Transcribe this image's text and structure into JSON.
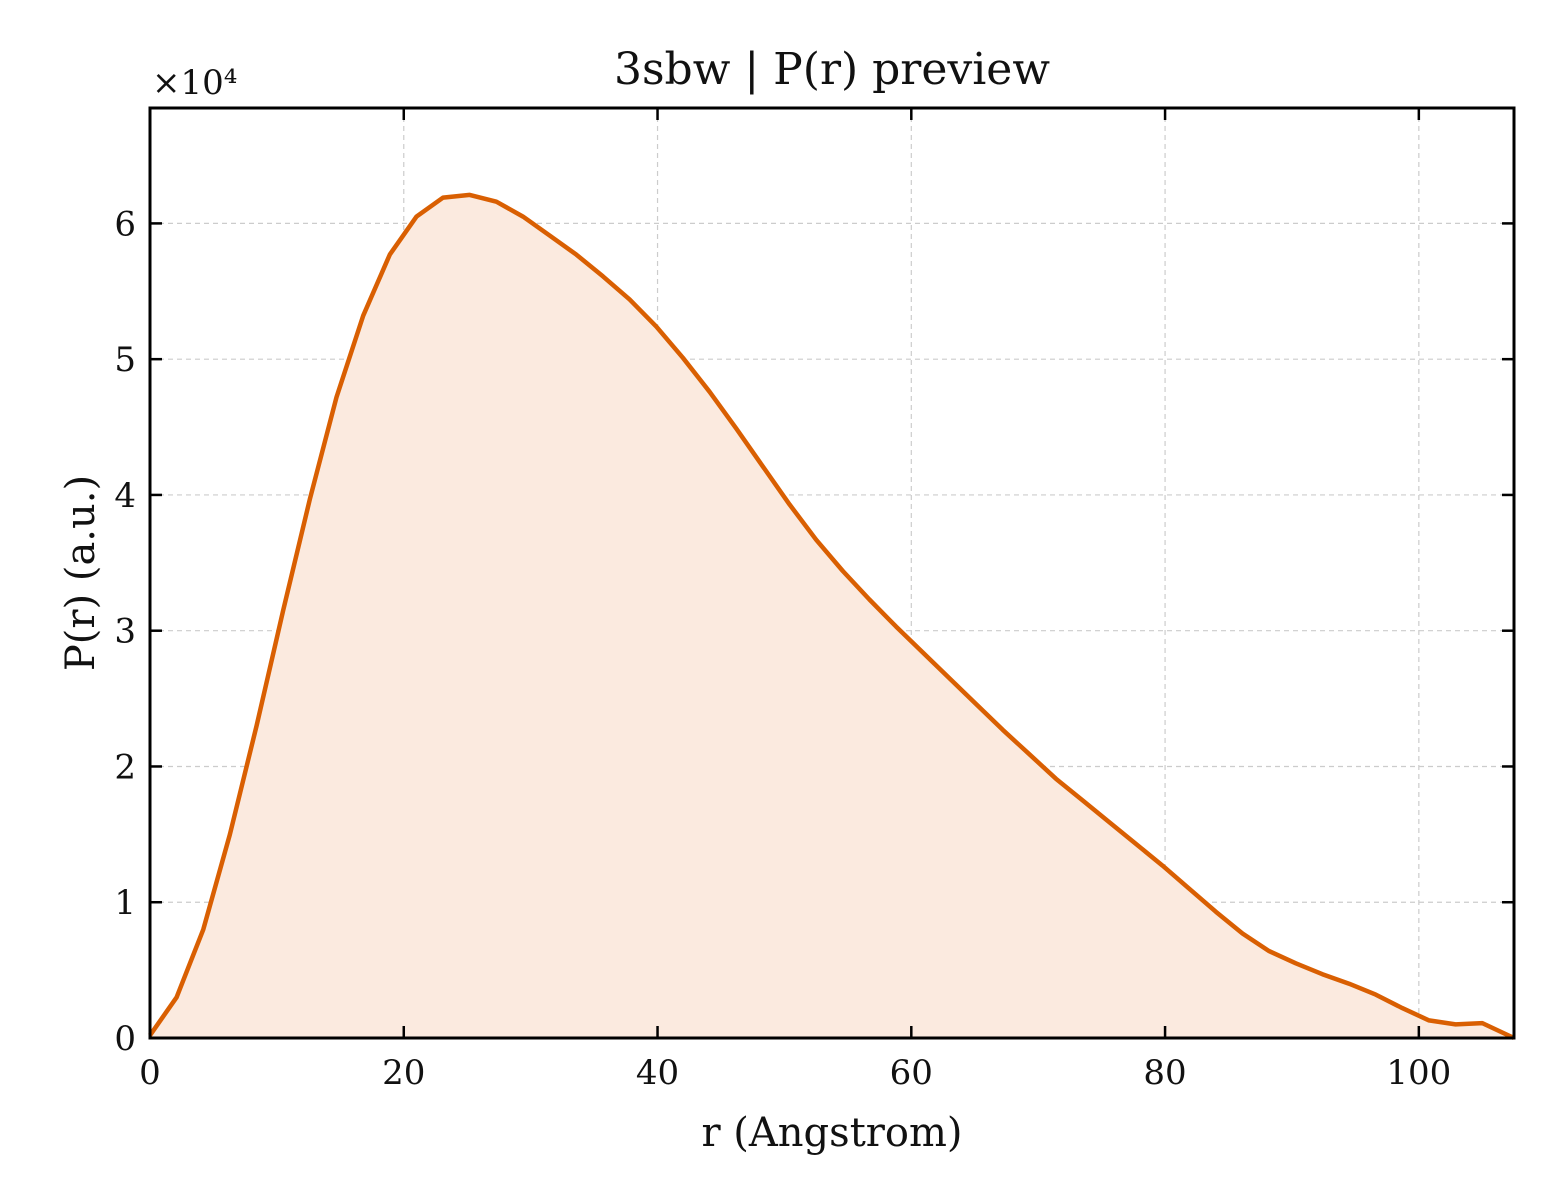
{
  "chart_data": {
    "type": "area",
    "title": "3sbw | P(r) preview",
    "xlabel": "r (Angstrom)",
    "ylabel": "P(r) (a.u.)",
    "y_multiplier_label": "×10⁴",
    "y_multiplier": 10000,
    "xlim": [
      0,
      107.5
    ],
    "ylim": [
      0,
      6.85
    ],
    "x_ticks": [
      0,
      20,
      40,
      60,
      80,
      100
    ],
    "y_ticks": [
      0,
      1,
      2,
      3,
      4,
      5,
      6
    ],
    "grid": true,
    "legend": false,
    "colors": {
      "line": "#d95f02",
      "fill": "#fbeadf",
      "grid": "#cccccc",
      "axis": "#000000"
    },
    "series": [
      {
        "x": [
          0,
          2.1,
          4.2,
          6.3,
          8.4,
          10.5,
          12.6,
          14.7,
          16.8,
          18.9,
          21.0,
          23.1,
          25.2,
          27.3,
          29.4,
          31.5,
          33.6,
          35.7,
          37.8,
          39.9,
          42.0,
          44.1,
          46.2,
          48.3,
          50.4,
          52.5,
          54.6,
          56.7,
          58.8,
          60.9,
          63.0,
          65.1,
          67.2,
          69.3,
          71.4,
          73.5,
          75.6,
          77.7,
          79.8,
          81.9,
          84.0,
          86.1,
          88.2,
          90.3,
          92.4,
          94.5,
          96.6,
          98.7,
          100.8,
          102.9,
          105.0,
          107.5
        ],
        "values": [
          0.02,
          0.3,
          0.8,
          1.5,
          2.3,
          3.15,
          3.97,
          4.72,
          5.32,
          5.77,
          6.05,
          6.19,
          6.21,
          6.16,
          6.05,
          5.91,
          5.77,
          5.61,
          5.44,
          5.24,
          5.01,
          4.76,
          4.49,
          4.21,
          3.93,
          3.67,
          3.44,
          3.23,
          3.03,
          2.84,
          2.65,
          2.46,
          2.27,
          2.09,
          1.91,
          1.75,
          1.59,
          1.43,
          1.27,
          1.1,
          0.93,
          0.77,
          0.64,
          0.55,
          0.47,
          0.4,
          0.32,
          0.22,
          0.13,
          0.1,
          0.11,
          0.0
        ]
      }
    ]
  }
}
